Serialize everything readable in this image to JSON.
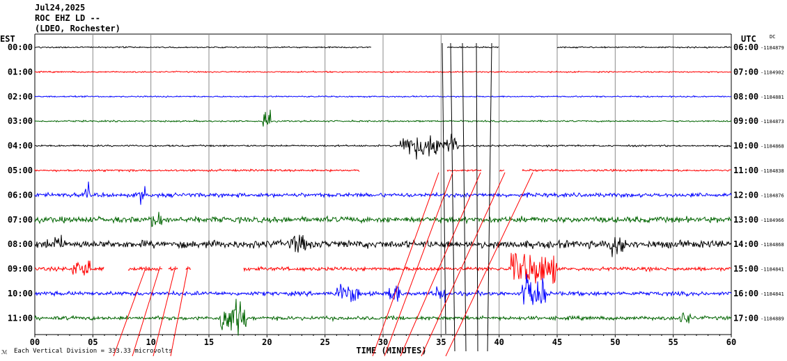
{
  "header": {
    "date": "Jul24,2025",
    "station": "ROC EHZ LD --",
    "network": "(LDEO, Rochester)"
  },
  "left_axis_title": "EST",
  "right_axis_title": "UTC",
  "dc_label": "DC",
  "footer": {
    "scale_note": "Each Vertical Division =  333.33 microvolts",
    "corner_mark": "ℳ"
  },
  "chart_data": {
    "type": "line",
    "title": "",
    "xlabel": "TIME (MINUTES)",
    "ylabel": "",
    "x_ticks": [
      "00",
      "05",
      "10",
      "15",
      "20",
      "25",
      "30",
      "35",
      "40",
      "45",
      "50",
      "55",
      "60"
    ],
    "xlim": [
      0,
      60
    ],
    "grid": true,
    "rows": [
      {
        "est": "00:00",
        "utc": "06:00",
        "dc": "-1184879",
        "color": "#000000"
      },
      {
        "est": "01:00",
        "utc": "07:00",
        "dc": "-1184902",
        "color": "#ff0000"
      },
      {
        "est": "02:00",
        "utc": "08:00",
        "dc": "-1184881",
        "color": "#0000ff"
      },
      {
        "est": "03:00",
        "utc": "09:00",
        "dc": "-1184873",
        "color": "#006400"
      },
      {
        "est": "04:00",
        "utc": "10:00",
        "dc": "-1184868",
        "color": "#000000"
      },
      {
        "est": "05:00",
        "utc": "11:00",
        "dc": "-1184838",
        "color": "#ff0000"
      },
      {
        "est": "06:00",
        "utc": "12:00",
        "dc": "-1184876",
        "color": "#0000ff"
      },
      {
        "est": "07:00",
        "utc": "13:00",
        "dc": "-1184966",
        "color": "#006400"
      },
      {
        "est": "08:00",
        "utc": "14:00",
        "dc": "-1184868",
        "color": "#000000"
      },
      {
        "est": "09:00",
        "utc": "15:00",
        "dc": "-1184841",
        "color": "#ff0000"
      },
      {
        "est": "10:00",
        "utc": "16:00",
        "dc": "-1184841",
        "color": "#0000ff"
      },
      {
        "est": "11:00",
        "utc": "17:00",
        "dc": "-1184889",
        "color": "#006400"
      }
    ]
  }
}
